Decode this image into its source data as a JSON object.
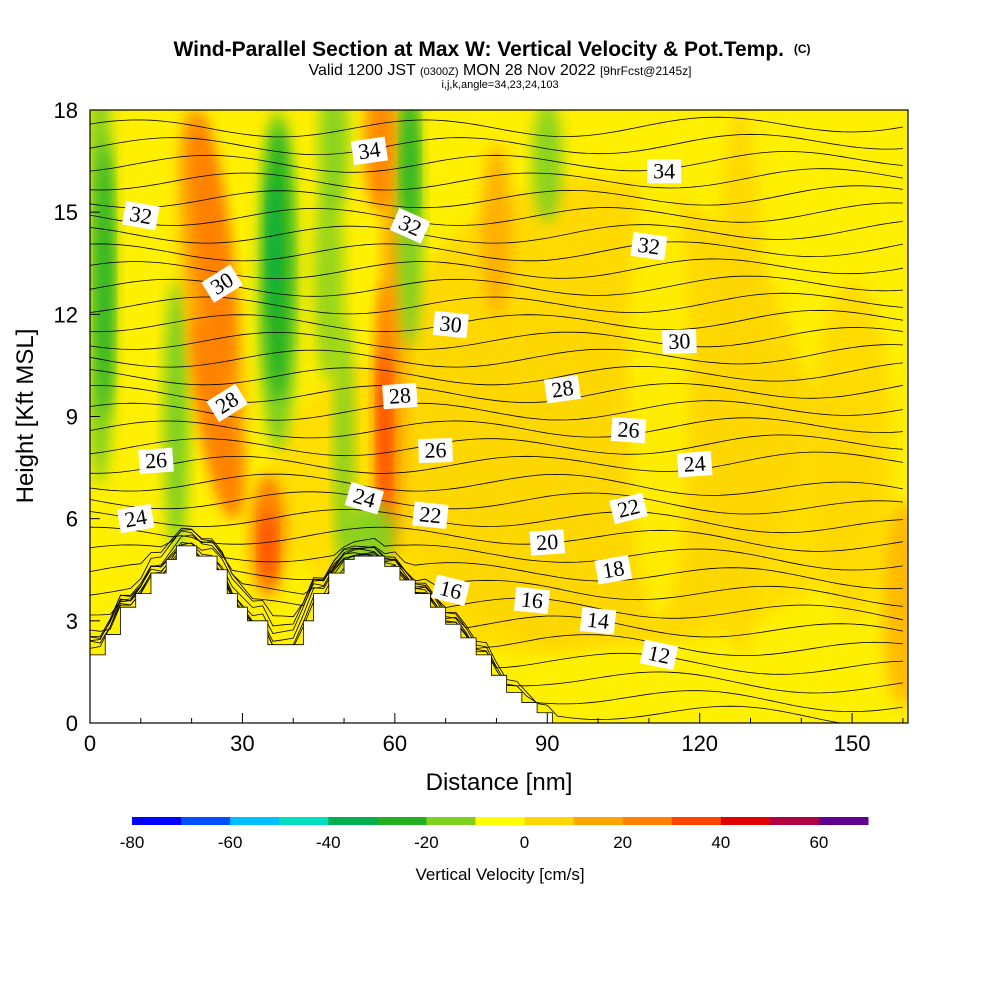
{
  "chart_data": {
    "type": "heatmap",
    "title": "Wind-Parallel Section at Max W: Vertical Velocity & Pot.Temp.",
    "title_units": "(C)",
    "subtitle": {
      "valid": "Valid 1200 JST",
      "utc": "(0300Z)",
      "date": "MON 28 Nov 2022",
      "forecast": "[9hrFcst@2145z]"
    },
    "info": "i,j,k,angle=34,23,24,103",
    "xlabel": "Distance [nm]",
    "ylabel": "Height [Kft MSL]",
    "xlim": [
      0,
      161
    ],
    "ylim": [
      0,
      18
    ],
    "xticks": [
      "0",
      "30",
      "60",
      "90",
      "120",
      "150"
    ],
    "yticks": [
      "0",
      "3",
      "6",
      "9",
      "12",
      "15",
      "18"
    ],
    "xtick_values": [
      0,
      30,
      60,
      90,
      120,
      150
    ],
    "ytick_values": [
      0,
      3,
      6,
      9,
      12,
      15,
      18
    ],
    "colorbar": {
      "label": "Vertical Velocity [cm/s]",
      "tick_labels": [
        "-80",
        "-60",
        "-40",
        "-20",
        "0",
        "20",
        "40",
        "60"
      ],
      "tick_values": [
        -80,
        -60,
        -40,
        -20,
        0,
        20,
        40,
        60
      ],
      "range": [
        -80,
        70
      ],
      "colors": [
        "#0000ff",
        "#0050ff",
        "#00bfff",
        "#00e0c0",
        "#00b050",
        "#20b020",
        "#80d020",
        "#ffff00",
        "#ffd700",
        "#ffa500",
        "#ff7f00",
        "#ff4500",
        "#e00000",
        "#b00040",
        "#600090"
      ]
    },
    "terrain": [
      [
        0,
        2.0
      ],
      [
        3,
        2.0
      ],
      [
        3,
        2.6
      ],
      [
        6,
        2.6
      ],
      [
        6,
        3.4
      ],
      [
        9,
        3.4
      ],
      [
        9,
        3.8
      ],
      [
        12,
        3.8
      ],
      [
        12,
        4.4
      ],
      [
        15,
        4.4
      ],
      [
        15,
        4.8
      ],
      [
        17,
        4.8
      ],
      [
        17,
        5.2
      ],
      [
        21,
        5.2
      ],
      [
        21,
        4.9
      ],
      [
        25,
        4.9
      ],
      [
        25,
        4.5
      ],
      [
        27,
        4.5
      ],
      [
        27,
        3.8
      ],
      [
        29,
        3.8
      ],
      [
        29,
        3.4
      ],
      [
        31,
        3.4
      ],
      [
        31,
        3.0
      ],
      [
        35,
        3.0
      ],
      [
        35,
        2.3
      ],
      [
        42,
        2.3
      ],
      [
        42,
        3.0
      ],
      [
        44,
        3.0
      ],
      [
        44,
        3.8
      ],
      [
        47,
        3.8
      ],
      [
        47,
        4.4
      ],
      [
        50,
        4.4
      ],
      [
        50,
        4.8
      ],
      [
        52,
        4.8
      ],
      [
        52,
        4.9
      ],
      [
        58,
        4.9
      ],
      [
        58,
        4.6
      ],
      [
        61,
        4.6
      ],
      [
        61,
        4.2
      ],
      [
        64,
        4.2
      ],
      [
        64,
        3.8
      ],
      [
        67,
        3.8
      ],
      [
        67,
        3.4
      ],
      [
        70,
        3.4
      ],
      [
        70,
        2.9
      ],
      [
        73,
        2.9
      ],
      [
        73,
        2.5
      ],
      [
        76,
        2.5
      ],
      [
        76,
        2.0
      ],
      [
        79,
        2.0
      ],
      [
        79,
        1.4
      ],
      [
        82,
        1.4
      ],
      [
        82,
        0.9
      ],
      [
        85,
        0.9
      ],
      [
        85,
        0.6
      ],
      [
        88,
        0.6
      ],
      [
        88,
        0.3
      ],
      [
        91,
        0.3
      ],
      [
        91,
        0
      ]
    ],
    "theta_contours": [
      {
        "label": "12",
        "x": 112,
        "y": 2.0,
        "angle": 12
      },
      {
        "label": "14",
        "x": 100,
        "y": 3.0,
        "angle": 6
      },
      {
        "label": "16",
        "x": 71,
        "y": 3.9,
        "angle": 14
      },
      {
        "label": "16",
        "x": 87,
        "y": 3.6,
        "angle": 6
      },
      {
        "label": "18",
        "x": 103,
        "y": 4.5,
        "angle": -10
      },
      {
        "label": "20",
        "x": 90,
        "y": 5.3,
        "angle": -4
      },
      {
        "label": "22",
        "x": 67,
        "y": 6.1,
        "angle": 6
      },
      {
        "label": "22",
        "x": 106,
        "y": 6.3,
        "angle": -14
      },
      {
        "label": "24",
        "x": 9,
        "y": 6.0,
        "angle": -10
      },
      {
        "label": "24",
        "x": 54,
        "y": 6.6,
        "angle": 16
      },
      {
        "label": "24",
        "x": 119,
        "y": 7.6,
        "angle": -4
      },
      {
        "label": "26",
        "x": 13,
        "y": 7.7,
        "angle": -4
      },
      {
        "label": "26",
        "x": 68,
        "y": 8.0,
        "angle": -2
      },
      {
        "label": "26",
        "x": 106,
        "y": 8.6,
        "angle": 4
      },
      {
        "label": "28",
        "x": 27,
        "y": 9.4,
        "angle": -32
      },
      {
        "label": "28",
        "x": 61,
        "y": 9.6,
        "angle": -4
      },
      {
        "label": "28",
        "x": 93,
        "y": 9.8,
        "angle": -8
      },
      {
        "label": "30",
        "x": 26,
        "y": 12.9,
        "angle": -32
      },
      {
        "label": "30",
        "x": 71,
        "y": 11.7,
        "angle": 6
      },
      {
        "label": "30",
        "x": 116,
        "y": 11.2,
        "angle": -2
      },
      {
        "label": "32",
        "x": 10,
        "y": 14.9,
        "angle": 10
      },
      {
        "label": "32",
        "x": 63,
        "y": 14.6,
        "angle": 24
      },
      {
        "label": "32",
        "x": 110,
        "y": 14.0,
        "angle": 8
      },
      {
        "label": "34",
        "x": 55,
        "y": 16.8,
        "angle": -8
      },
      {
        "label": "34",
        "x": 113,
        "y": 16.2,
        "angle": 0
      }
    ]
  }
}
